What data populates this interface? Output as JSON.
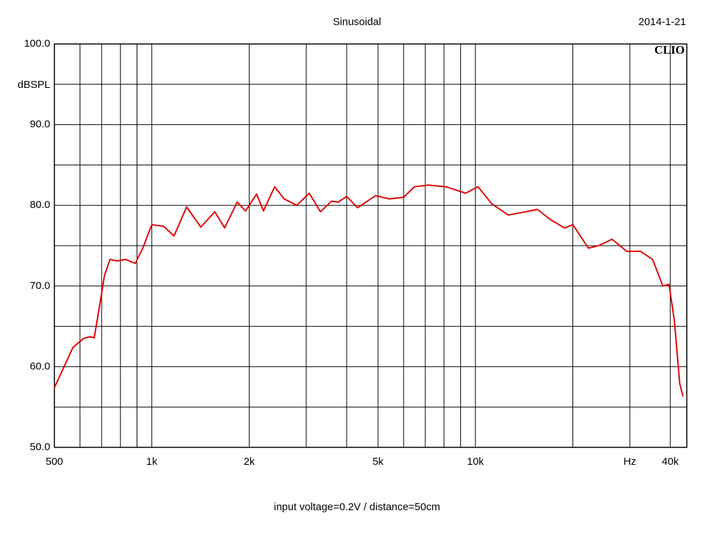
{
  "chart_data": {
    "type": "line",
    "title": "Sinusoidal",
    "date": "2014-1-21",
    "watermark": "CLIO",
    "ylabel": "dBSPL",
    "caption": "input voltage=0.2V / distance=50cm",
    "xscale": "log",
    "grid": true,
    "xlim": [
      500,
      45000
    ],
    "ylim": [
      50,
      100
    ],
    "xticks": [
      500,
      {
        "value": 1000,
        "label": "1k"
      },
      {
        "value": 2000,
        "label": "2k"
      },
      {
        "value": 5000,
        "label": "5k"
      },
      {
        "value": 10000,
        "label": "10k"
      },
      {
        "value": 30000,
        "label": "Hz"
      },
      {
        "value": 40000,
        "label": "40k"
      }
    ],
    "xminor": [
      600,
      700,
      800,
      900,
      3000,
      4000,
      6000,
      7000,
      8000,
      9000,
      20000
    ],
    "yticks": [
      {
        "value": 50,
        "label": "50.0"
      },
      {
        "value": 60,
        "label": "60.0"
      },
      {
        "value": 70,
        "label": "70.0"
      },
      {
        "value": 80,
        "label": "80.0"
      },
      {
        "value": 90,
        "label": "90.0"
      },
      {
        "value": 100,
        "label": "100.0"
      }
    ],
    "yminor": [
      55,
      65,
      75,
      85,
      95
    ],
    "series": [
      {
        "color": "#e00000",
        "x": [
          500,
          530,
          571,
          616,
          641,
          664,
          700,
          714,
          743,
          781,
          829,
          889,
          938,
          1000,
          1088,
          1171,
          1281,
          1417,
          1566,
          1679,
          1836,
          1948,
          2108,
          2213,
          2397,
          2564,
          2804,
          3067,
          3320,
          3590,
          3771,
          4000,
          4325,
          4914,
          5414,
          6000,
          6482,
          7150,
          8116,
          9321,
          10188,
          11230,
          12636,
          14320,
          15530,
          17100,
          18840,
          20000,
          22340,
          24040,
          26440,
          29350,
          32340,
          35290,
          37930,
          39650,
          41200,
          42790,
          43820
        ],
        "values": [
          57.4,
          59.6,
          62.4,
          63.5,
          63.7,
          63.6,
          69.1,
          71.3,
          73.3,
          73.1,
          73.3,
          72.8,
          74.7,
          77.6,
          77.4,
          76.2,
          79.8,
          77.3,
          79.2,
          77.2,
          80.4,
          79.3,
          81.4,
          79.3,
          82.3,
          80.8,
          80.0,
          81.5,
          79.2,
          80.5,
          80.4,
          81.1,
          79.7,
          81.2,
          80.8,
          81.0,
          82.3,
          82.5,
          82.3,
          81.5,
          82.3,
          80.2,
          78.8,
          79.2,
          79.5,
          78.2,
          77.2,
          77.6,
          74.7,
          75.0,
          75.8,
          74.3,
          74.3,
          73.3,
          70.0,
          70.2,
          65.7,
          57.9,
          56.3
        ]
      }
    ]
  }
}
